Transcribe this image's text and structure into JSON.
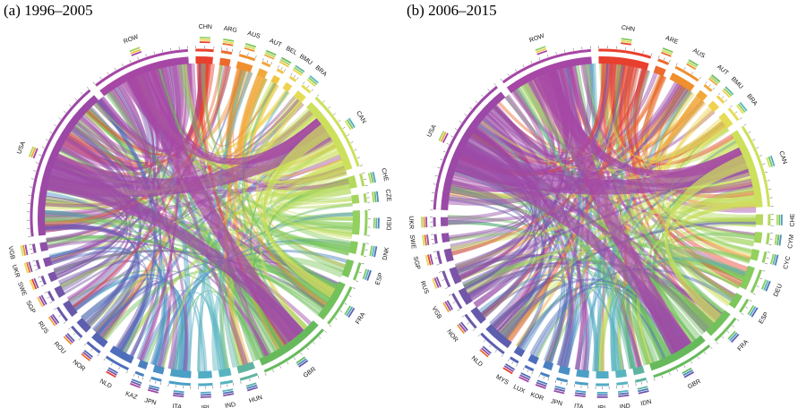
{
  "panels": [
    {
      "title": "(a) 1996–2005",
      "regions": [
        {
          "label": "CHN",
          "color": "#e8402e",
          "weight": 1.0
        },
        {
          "label": "ARG",
          "color": "#ec6a2c",
          "weight": 0.6
        },
        {
          "label": "AUS",
          "color": "#ef8f2e",
          "weight": 0.9
        },
        {
          "label": "AUT",
          "color": "#f1a83a",
          "weight": 0.5
        },
        {
          "label": "BEL",
          "color": "#f2c443",
          "weight": 0.4
        },
        {
          "label": "BMU",
          "color": "#efd24e",
          "weight": 0.4
        },
        {
          "label": "BRA",
          "color": "#e5dc55",
          "weight": 0.6
        },
        {
          "label": "CAN",
          "color": "#cde05c",
          "weight": 4.5
        },
        {
          "label": "CHE",
          "color": "#b4d95c",
          "weight": 0.7
        },
        {
          "label": "CZE",
          "color": "#a3d45e",
          "weight": 0.5
        },
        {
          "label": "DEU",
          "color": "#93d05e",
          "weight": 1.4
        },
        {
          "label": "DNK",
          "color": "#86cb5d",
          "weight": 0.7
        },
        {
          "label": "ESP",
          "color": "#7cc65d",
          "weight": 1.0
        },
        {
          "label": "FRA",
          "color": "#72c15d",
          "weight": 2.4
        },
        {
          "label": "GBR",
          "color": "#66ba5c",
          "weight": 4.0
        },
        {
          "label": "HUN",
          "color": "#5fb4a0",
          "weight": 1.0
        },
        {
          "label": "IND",
          "color": "#58b5c0",
          "weight": 0.7
        },
        {
          "label": "IRL",
          "color": "#52acc4",
          "weight": 0.8
        },
        {
          "label": "ITA",
          "color": "#4c9fc5",
          "weight": 1.2
        },
        {
          "label": "JPN",
          "color": "#4a8fc4",
          "weight": 0.6
        },
        {
          "label": "KAZ",
          "color": "#4a7fc0",
          "weight": 0.5
        },
        {
          "label": "NLD",
          "color": "#4d6fbb",
          "weight": 1.4
        },
        {
          "label": "NOR",
          "color": "#5465b5",
          "weight": 0.9
        },
        {
          "label": "ROU",
          "color": "#5d5eae",
          "weight": 0.8
        },
        {
          "label": "RUS",
          "color": "#6759aa",
          "weight": 0.9
        },
        {
          "label": "SGP",
          "color": "#7256a8",
          "weight": 0.6
        },
        {
          "label": "SWE",
          "color": "#7b53a7",
          "weight": 0.5
        },
        {
          "label": "UKR",
          "color": "#8451a7",
          "weight": 0.5
        },
        {
          "label": "VGB",
          "color": "#8d4fa7",
          "weight": 0.5
        },
        {
          "label": "USA",
          "color": "#9c48a6",
          "weight": 9.0
        },
        {
          "label": "ROW",
          "color": "#a747a5",
          "weight": 5.5
        }
      ]
    },
    {
      "title": "(b) 2006–2015",
      "regions": [
        {
          "label": "CHN",
          "color": "#e8402e",
          "weight": 2.8
        },
        {
          "label": "ARE",
          "color": "#ec6a2c",
          "weight": 0.6
        },
        {
          "label": "AUS",
          "color": "#ef8f2e",
          "weight": 1.4
        },
        {
          "label": "AUT",
          "color": "#f1a83a",
          "weight": 0.5
        },
        {
          "label": "BMU",
          "color": "#efd24e",
          "weight": 0.5
        },
        {
          "label": "BRA",
          "color": "#e5dc55",
          "weight": 0.8
        },
        {
          "label": "CAN",
          "color": "#cde05c",
          "weight": 4.5
        },
        {
          "label": "CHE",
          "color": "#b4d95c",
          "weight": 0.6
        },
        {
          "label": "CYM",
          "color": "#a3d45e",
          "weight": 0.6
        },
        {
          "label": "CYC",
          "color": "#93d05e",
          "weight": 0.6
        },
        {
          "label": "DEU",
          "color": "#86cb5d",
          "weight": 1.3
        },
        {
          "label": "ESP",
          "color": "#7cc65d",
          "weight": 0.8
        },
        {
          "label": "FRA",
          "color": "#72c15d",
          "weight": 1.6
        },
        {
          "label": "GBR",
          "color": "#66ba5c",
          "weight": 3.4
        },
        {
          "label": "IDN",
          "color": "#5fb4a0",
          "weight": 0.6
        },
        {
          "label": "IND",
          "color": "#58b5c0",
          "weight": 0.6
        },
        {
          "label": "IRL",
          "color": "#52acc4",
          "weight": 0.7
        },
        {
          "label": "ITA",
          "color": "#4c9fc5",
          "weight": 0.7
        },
        {
          "label": "JPN",
          "color": "#4a8fc4",
          "weight": 0.6
        },
        {
          "label": "KOR",
          "color": "#4a7fc0",
          "weight": 0.5
        },
        {
          "label": "LUX",
          "color": "#4d6fbb",
          "weight": 0.5
        },
        {
          "label": "MYS",
          "color": "#5465b5",
          "weight": 0.5
        },
        {
          "label": "NLD",
          "color": "#5d5eae",
          "weight": 1.6
        },
        {
          "label": "NOR",
          "color": "#6759aa",
          "weight": 0.9
        },
        {
          "label": "VGB",
          "color": "#7256a8",
          "weight": 0.9
        },
        {
          "label": "RUS",
          "color": "#7b53a7",
          "weight": 0.9
        },
        {
          "label": "SGP",
          "color": "#8451a7",
          "weight": 0.7
        },
        {
          "label": "SWE",
          "color": "#8d4fa7",
          "weight": 0.5
        },
        {
          "label": "UKR",
          "color": "#9450a6",
          "weight": 0.5
        },
        {
          "label": "USA",
          "color": "#9c48a6",
          "weight": 7.5
        },
        {
          "label": "ROW",
          "color": "#a747a5",
          "weight": 5.0
        }
      ]
    }
  ]
}
